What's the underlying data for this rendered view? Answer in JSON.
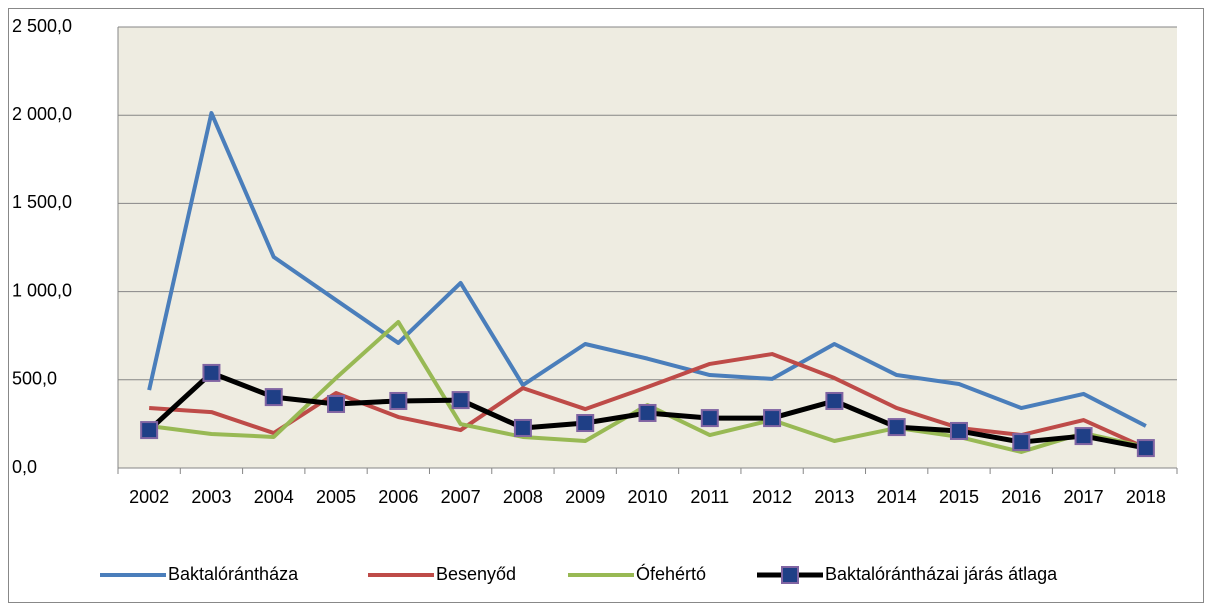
{
  "chart_data": {
    "type": "line",
    "categories": [
      "2002",
      "2003",
      "2004",
      "2005",
      "2006",
      "2007",
      "2008",
      "2009",
      "2010",
      "2011",
      "2012",
      "2013",
      "2014",
      "2015",
      "2016",
      "2017",
      "2018"
    ],
    "series": [
      {
        "name": "Baktalórántháza",
        "color": "#4a7ebb",
        "values": [
          442,
          2012,
          1196,
          952,
          709,
          1049,
          470,
          703,
          620,
          527,
          505,
          703,
          527,
          476,
          340,
          420,
          238
        ]
      },
      {
        "name": "Besenyőd",
        "color": "#be4b48",
        "values": [
          340,
          317,
          198,
          425,
          289,
          215,
          453,
          334,
          459,
          590,
          646,
          510,
          340,
          227,
          187,
          272,
          113
        ]
      },
      {
        "name": "Ófehértó",
        "color": "#98b954",
        "values": [
          238,
          193,
          176,
          510,
          828,
          249,
          176,
          153,
          357,
          187,
          272,
          153,
          227,
          176,
          91,
          198,
          119
        ]
      },
      {
        "name": "Baktalórántházai járás átlaga",
        "color": "#000000",
        "marker": "square",
        "values": [
          215,
          539,
          402,
          363,
          380,
          385,
          227,
          255,
          312,
          283,
          283,
          380,
          232,
          210,
          147,
          181,
          113
        ]
      }
    ],
    "ylim": [
      0,
      2500
    ],
    "yticks": [
      {
        "value": 0,
        "label": "0,0"
      },
      {
        "value": 500,
        "label": "500,0"
      },
      {
        "value": 1000,
        "label": "1 000,0"
      },
      {
        "value": 1500,
        "label": "1 500,0"
      },
      {
        "value": 2000,
        "label": "2 000,0"
      },
      {
        "value": 2500,
        "label": "2 500,0"
      }
    ],
    "grid": true,
    "legend": "bottom"
  }
}
